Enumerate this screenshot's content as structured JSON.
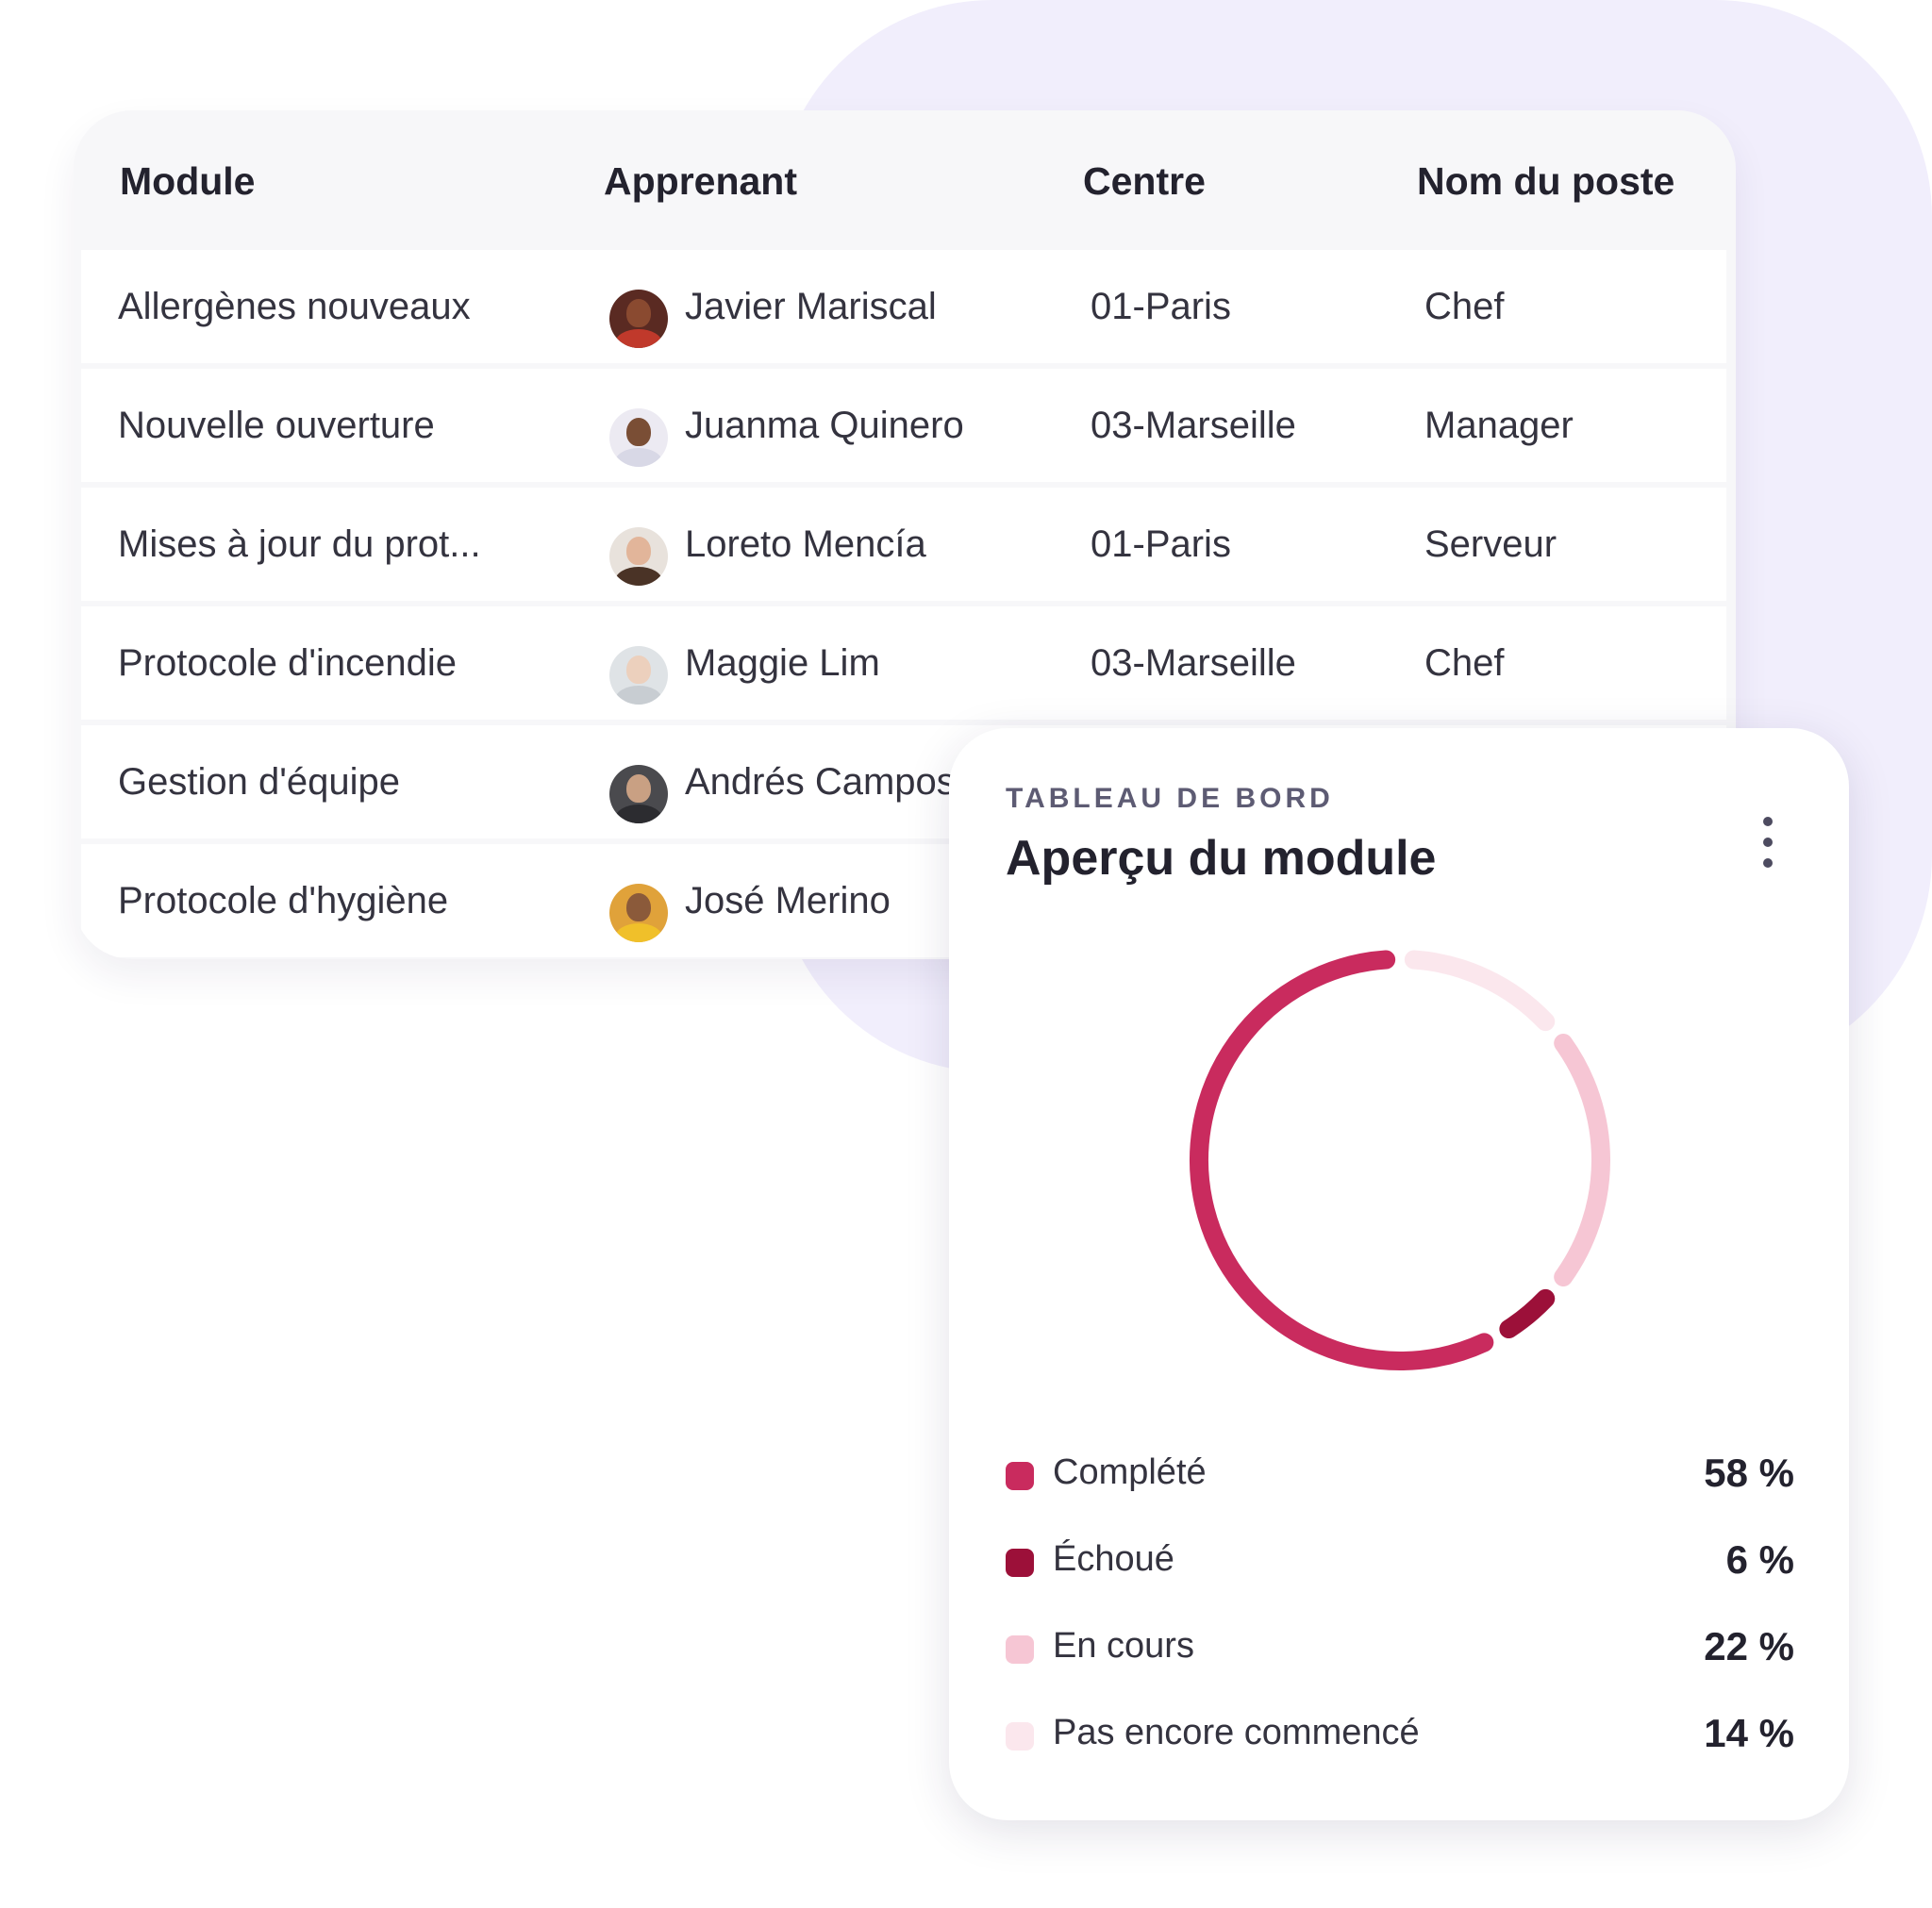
{
  "table": {
    "headers": {
      "module": "Module",
      "learner": "Apprenant",
      "centre": "Centre",
      "poste": "Nom du poste"
    },
    "rows": [
      {
        "module": "Allergènes nouveaux",
        "learner": "Javier Mariscal",
        "centre": "01-Paris",
        "poste": "Chef",
        "avatar_bg": "#5a2a22",
        "avatar_face": "#8a4a30",
        "avatar_body": "#c0392b"
      },
      {
        "module": "Nouvelle ouverture",
        "learner": "Juanma Quinero",
        "centre": "03-Marseille",
        "poste": "Manager",
        "avatar_bg": "#eceaf2",
        "avatar_face": "#7a4e35",
        "avatar_body": "#d8d8e6"
      },
      {
        "module": "Mises à jour du prot...",
        "learner": "Loreto Mencía",
        "centre": "01-Paris",
        "poste": "Serveur",
        "avatar_bg": "#e8e2dc",
        "avatar_face": "#e2b59a",
        "avatar_body": "#4a3326"
      },
      {
        "module": "Protocole d'incendie",
        "learner": "Maggie Lim",
        "centre": "03-Marseille",
        "poste": "Chef",
        "avatar_bg": "#dfe3e6",
        "avatar_face": "#ecd0bd",
        "avatar_body": "#c8cdd2"
      },
      {
        "module": "Gestion d'équipe",
        "learner": "Andrés Campos",
        "centre": "",
        "poste": "",
        "avatar_bg": "#4a4a4e",
        "avatar_face": "#c9a083",
        "avatar_body": "#2c2c30"
      },
      {
        "module": "Protocole d'hygiène",
        "learner": "José Merino",
        "centre": "",
        "poste": "",
        "avatar_bg": "#e0a23a",
        "avatar_face": "#8b5a3a",
        "avatar_body": "#f0c02a"
      }
    ]
  },
  "dashboard": {
    "kicker": "TABLEAU DE BORD",
    "title": "Aperçu du module",
    "menu_icon": "kebab-menu-icon"
  },
  "chart_data": {
    "type": "pie",
    "variant": "donut",
    "categories": [
      "Complété",
      "Échoué",
      "En cours",
      "Pas encore commencé"
    ],
    "values": [
      58,
      6,
      22,
      14
    ],
    "value_labels": [
      "58 %",
      "6 %",
      "22 %",
      "14 %"
    ],
    "colors": [
      "#c92b5e",
      "#9c1039",
      "#f6c6d4",
      "#fbe7ed"
    ],
    "start": "top",
    "direction": "counterclockwise"
  }
}
